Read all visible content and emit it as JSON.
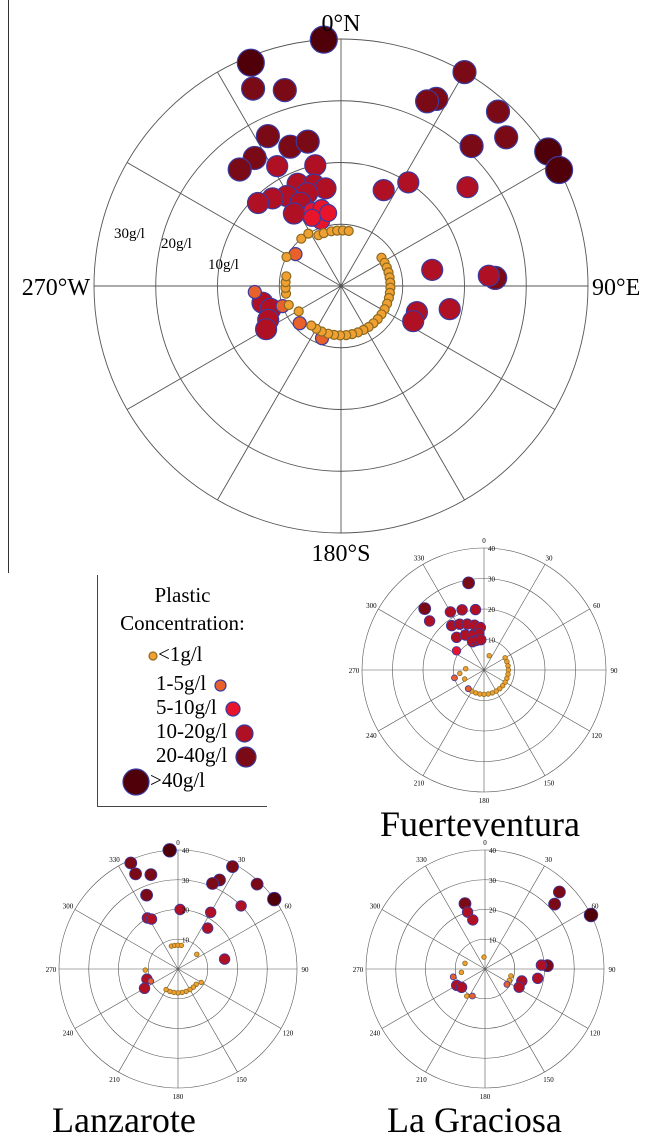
{
  "figure_left_rule": true,
  "legend": {
    "title_line1": "Plastic",
    "title_line2": "Concentration:",
    "items": [
      {
        "label": "<1g/l",
        "color": "#f0a030",
        "side": "left"
      },
      {
        "label": "1-5g/l",
        "color": "#e8602a",
        "side": "right"
      },
      {
        "label": "5-10g/l",
        "color": "#e8142c",
        "side": "right"
      },
      {
        "label": "10-20g/l",
        "color": "#b01024",
        "side": "right"
      },
      {
        "label": "20-40g/l",
        "color": "#7a0a16",
        "side": "right"
      },
      {
        "label": ">40g/l",
        "color": "#500008",
        "side": "left"
      }
    ],
    "stroke_color": "#3a3aa0"
  },
  "labels": {
    "fuerteventura": "Fuerteventura",
    "lanzarote": "Lanzarote",
    "la_graciosa": "La Graciosa"
  },
  "chart_data": [
    {
      "type": "scatter",
      "id": "combined",
      "projection": "polar",
      "theta_direction": "clockwise",
      "theta_zero": "north",
      "direction_labels": [
        "0°N",
        "90°E",
        "180°S",
        "270°W"
      ],
      "radial_labels": [
        "10g/l",
        "20g/l",
        "30g/l"
      ],
      "r_ticks": [
        10,
        20,
        30,
        40
      ],
      "r_max": 40,
      "points": [
        {
          "theta": 356,
          "r": 40,
          "cls": 5
        },
        {
          "theta": 338,
          "r": 39,
          "cls": 5
        },
        {
          "theta": 336,
          "r": 35,
          "cls": 4
        },
        {
          "theta": 344,
          "r": 33,
          "cls": 4
        },
        {
          "theta": 334,
          "r": 27,
          "cls": 4
        },
        {
          "theta": 326,
          "r": 25,
          "cls": 4
        },
        {
          "theta": 319,
          "r": 25,
          "cls": 4
        },
        {
          "theta": 332,
          "r": 22,
          "cls": 3
        },
        {
          "theta": 340,
          "r": 24,
          "cls": 4
        },
        {
          "theta": 347,
          "r": 24,
          "cls": 4
        },
        {
          "theta": 348,
          "r": 20,
          "cls": 3
        },
        {
          "theta": 337,
          "r": 18,
          "cls": 3
        },
        {
          "theta": 329,
          "r": 17,
          "cls": 3
        },
        {
          "theta": 322,
          "r": 18,
          "cls": 3
        },
        {
          "theta": 315,
          "r": 19,
          "cls": 3
        },
        {
          "theta": 345,
          "r": 17,
          "cls": 3
        },
        {
          "theta": 351,
          "r": 16,
          "cls": 3
        },
        {
          "theta": 340,
          "r": 16,
          "cls": 3
        },
        {
          "theta": 334,
          "r": 15,
          "cls": 3
        },
        {
          "theta": 327,
          "r": 14,
          "cls": 3
        },
        {
          "theta": 339,
          "r": 13,
          "cls": 2
        },
        {
          "theta": 346,
          "r": 13,
          "cls": 2
        },
        {
          "theta": 343,
          "r": 11,
          "cls": 2
        },
        {
          "theta": 350,
          "r": 12,
          "cls": 2
        },
        {
          "theta": 337,
          "r": 12,
          "cls": 2
        },
        {
          "theta": 30,
          "r": 40,
          "cls": 4
        },
        {
          "theta": 27,
          "r": 34,
          "cls": 4
        },
        {
          "theta": 25,
          "r": 33,
          "cls": 4
        },
        {
          "theta": 42,
          "r": 38,
          "cls": 4
        },
        {
          "theta": 48,
          "r": 36,
          "cls": 4
        },
        {
          "theta": 43,
          "r": 31,
          "cls": 4
        },
        {
          "theta": 57,
          "r": 40,
          "cls": 5
        },
        {
          "theta": 62,
          "r": 40,
          "cls": 5
        },
        {
          "theta": 52,
          "r": 26,
          "cls": 3
        },
        {
          "theta": 33,
          "r": 20,
          "cls": 3
        },
        {
          "theta": 24,
          "r": 17,
          "cls": 3
        },
        {
          "theta": 87,
          "r": 25,
          "cls": 4
        },
        {
          "theta": 86,
          "r": 24,
          "cls": 3
        },
        {
          "theta": 80,
          "r": 15,
          "cls": 3
        },
        {
          "theta": 102,
          "r": 18,
          "cls": 3
        },
        {
          "theta": 109,
          "r": 13,
          "cls": 3
        },
        {
          "theta": 116,
          "r": 13,
          "cls": 3
        },
        {
          "theta": 258,
          "r": 13,
          "cls": 3
        },
        {
          "theta": 252,
          "r": 12,
          "cls": 3
        },
        {
          "theta": 245,
          "r": 13,
          "cls": 3
        },
        {
          "theta": 240,
          "r": 14,
          "cls": 3
        },
        {
          "theta": 266,
          "r": 14,
          "cls": 1
        },
        {
          "theta": 251,
          "r": 10,
          "cls": 1
        },
        {
          "theta": 250,
          "r": 9,
          "cls": 0
        },
        {
          "theta": 262,
          "r": 9,
          "cls": 0
        },
        {
          "theta": 268,
          "r": 9,
          "cls": 0
        },
        {
          "theta": 274,
          "r": 9,
          "cls": 0
        },
        {
          "theta": 280,
          "r": 9,
          "cls": 0
        },
        {
          "theta": 239,
          "r": 8,
          "cls": 0
        },
        {
          "theta": 228,
          "r": 9,
          "cls": 1
        },
        {
          "theta": 200,
          "r": 9,
          "cls": 1
        },
        {
          "theta": 320,
          "r": 10,
          "cls": 0
        },
        {
          "theta": 328,
          "r": 10,
          "cls": 0
        },
        {
          "theta": 336,
          "r": 9,
          "cls": 0
        },
        {
          "theta": 342,
          "r": 9,
          "cls": 0
        },
        {
          "theta": 350,
          "r": 9,
          "cls": 0
        },
        {
          "theta": 356,
          "r": 9,
          "cls": 0
        },
        {
          "theta": 2,
          "r": 9,
          "cls": 0
        },
        {
          "theta": 8,
          "r": 9,
          "cls": 0
        },
        {
          "theta": 305,
          "r": 9,
          "cls": 1
        },
        {
          "theta": 298,
          "r": 10,
          "cls": 0
        },
        {
          "theta": 55,
          "r": 8,
          "cls": 0
        },
        {
          "theta": 62,
          "r": 8,
          "cls": 0
        },
        {
          "theta": 68,
          "r": 8,
          "cls": 0
        },
        {
          "theta": 74,
          "r": 8,
          "cls": 0
        },
        {
          "theta": 80,
          "r": 8,
          "cls": 0
        },
        {
          "theta": 86,
          "r": 8,
          "cls": 0
        },
        {
          "theta": 92,
          "r": 8,
          "cls": 0
        },
        {
          "theta": 98,
          "r": 8,
          "cls": 0
        },
        {
          "theta": 104,
          "r": 8,
          "cls": 0
        },
        {
          "theta": 111,
          "r": 8,
          "cls": 0
        },
        {
          "theta": 118,
          "r": 8,
          "cls": 0
        },
        {
          "theta": 125,
          "r": 8,
          "cls": 0
        },
        {
          "theta": 132,
          "r": 8,
          "cls": 0
        },
        {
          "theta": 139,
          "r": 8,
          "cls": 0
        },
        {
          "theta": 146,
          "r": 8,
          "cls": 0
        },
        {
          "theta": 153,
          "r": 8,
          "cls": 0
        },
        {
          "theta": 160,
          "r": 8,
          "cls": 0
        },
        {
          "theta": 167,
          "r": 8,
          "cls": 0
        },
        {
          "theta": 174,
          "r": 8,
          "cls": 0
        },
        {
          "theta": 181,
          "r": 8,
          "cls": 0
        },
        {
          "theta": 188,
          "r": 8,
          "cls": 0
        },
        {
          "theta": 195,
          "r": 8,
          "cls": 0
        },
        {
          "theta": 203,
          "r": 8,
          "cls": 0
        },
        {
          "theta": 210,
          "r": 8,
          "cls": 0
        },
        {
          "theta": 217,
          "r": 8,
          "cls": 0
        }
      ]
    },
    {
      "type": "scatter",
      "id": "fuerteventura",
      "projection": "polar",
      "theta_direction": "clockwise",
      "theta_zero": "north",
      "angle_labels": [
        "0",
        "30",
        "60",
        "90",
        "120",
        "150",
        "180",
        "210",
        "240",
        "270",
        "300",
        "330"
      ],
      "r_tick_labels": [
        "10",
        "20",
        "30",
        "40"
      ],
      "r_ticks": [
        10,
        20,
        30,
        40
      ],
      "r_max": 40,
      "points": [
        {
          "theta": 350,
          "r": 29,
          "cls": 4
        },
        {
          "theta": 316,
          "r": 28,
          "cls": 4
        },
        {
          "theta": 312,
          "r": 24,
          "cls": 3
        },
        {
          "theta": 330,
          "r": 22,
          "cls": 3
        },
        {
          "theta": 340,
          "r": 21,
          "cls": 3
        },
        {
          "theta": 352,
          "r": 20,
          "cls": 3
        },
        {
          "theta": 324,
          "r": 18,
          "cls": 3
        },
        {
          "theta": 332,
          "r": 17,
          "cls": 3
        },
        {
          "theta": 340,
          "r": 16,
          "cls": 3
        },
        {
          "theta": 348,
          "r": 15,
          "cls": 3
        },
        {
          "theta": 355,
          "r": 14,
          "cls": 3
        },
        {
          "theta": 320,
          "r": 14,
          "cls": 3
        },
        {
          "theta": 332,
          "r": 13,
          "cls": 3
        },
        {
          "theta": 342,
          "r": 12,
          "cls": 3
        },
        {
          "theta": 352,
          "r": 12,
          "cls": 3
        },
        {
          "theta": 338,
          "r": 10,
          "cls": 3
        },
        {
          "theta": 346,
          "r": 10,
          "cls": 3
        },
        {
          "theta": 354,
          "r": 10,
          "cls": 3
        },
        {
          "theta": 305,
          "r": 11,
          "cls": 2
        },
        {
          "theta": 255,
          "r": 10,
          "cls": 1
        },
        {
          "theta": 262,
          "r": 8,
          "cls": 0
        },
        {
          "theta": 274,
          "r": 6,
          "cls": 0
        },
        {
          "theta": 245,
          "r": 7,
          "cls": 0
        },
        {
          "theta": 20,
          "r": 5,
          "cls": 0
        },
        {
          "theta": 60,
          "r": 8,
          "cls": 0
        },
        {
          "theta": 70,
          "r": 8,
          "cls": 0
        },
        {
          "theta": 80,
          "r": 8,
          "cls": 0
        },
        {
          "theta": 90,
          "r": 8,
          "cls": 0
        },
        {
          "theta": 100,
          "r": 8,
          "cls": 0
        },
        {
          "theta": 110,
          "r": 8,
          "cls": 0
        },
        {
          "theta": 120,
          "r": 8,
          "cls": 0
        },
        {
          "theta": 130,
          "r": 8,
          "cls": 0
        },
        {
          "theta": 140,
          "r": 8,
          "cls": 0
        },
        {
          "theta": 150,
          "r": 8,
          "cls": 0
        },
        {
          "theta": 160,
          "r": 8,
          "cls": 0
        },
        {
          "theta": 170,
          "r": 8,
          "cls": 0
        },
        {
          "theta": 180,
          "r": 8,
          "cls": 0
        },
        {
          "theta": 190,
          "r": 8,
          "cls": 0
        },
        {
          "theta": 200,
          "r": 8,
          "cls": 0
        },
        {
          "theta": 210,
          "r": 8,
          "cls": 0
        },
        {
          "theta": 220,
          "r": 8,
          "cls": 1
        }
      ]
    },
    {
      "type": "scatter",
      "id": "lanzarote",
      "projection": "polar",
      "theta_direction": "clockwise",
      "theta_zero": "north",
      "angle_labels": [
        "0",
        "30",
        "60",
        "90",
        "120",
        "150",
        "180",
        "210",
        "240",
        "270",
        "300",
        "330"
      ],
      "r_tick_labels": [
        "10",
        "20",
        "30",
        "40"
      ],
      "r_ticks": [
        10,
        20,
        30,
        40
      ],
      "r_max": 40,
      "points": [
        {
          "theta": 356,
          "r": 40,
          "cls": 5
        },
        {
          "theta": 336,
          "r": 39,
          "cls": 4
        },
        {
          "theta": 336,
          "r": 35,
          "cls": 4
        },
        {
          "theta": 344,
          "r": 33,
          "cls": 4
        },
        {
          "theta": 337,
          "r": 27,
          "cls": 4
        },
        {
          "theta": 329,
          "r": 20,
          "cls": 3
        },
        {
          "theta": 332,
          "r": 19,
          "cls": 3
        },
        {
          "theta": 2,
          "r": 20,
          "cls": 3
        },
        {
          "theta": 28,
          "r": 39,
          "cls": 4
        },
        {
          "theta": 25,
          "r": 33,
          "cls": 4
        },
        {
          "theta": 22,
          "r": 31,
          "cls": 4
        },
        {
          "theta": 43,
          "r": 39,
          "cls": 4
        },
        {
          "theta": 54,
          "r": 40,
          "cls": 5
        },
        {
          "theta": 45,
          "r": 30,
          "cls": 3
        },
        {
          "theta": 30,
          "r": 22,
          "cls": 3
        },
        {
          "theta": 36,
          "r": 17,
          "cls": 3
        },
        {
          "theta": 78,
          "r": 16,
          "cls": 3
        },
        {
          "theta": 252,
          "r": 11,
          "cls": 3
        },
        {
          "theta": 240,
          "r": 13,
          "cls": 3
        },
        {
          "theta": 246,
          "r": 10,
          "cls": 1
        },
        {
          "theta": 268,
          "r": 11,
          "cls": 0
        },
        {
          "theta": 344,
          "r": 8,
          "cls": 0
        },
        {
          "theta": 352,
          "r": 8,
          "cls": 0
        },
        {
          "theta": 0,
          "r": 8,
          "cls": 0
        },
        {
          "theta": 8,
          "r": 8,
          "cls": 0
        },
        {
          "theta": 52,
          "r": 8,
          "cls": 0
        },
        {
          "theta": 120,
          "r": 9,
          "cls": 0
        },
        {
          "theta": 130,
          "r": 8,
          "cls": 0
        },
        {
          "theta": 140,
          "r": 8,
          "cls": 0
        },
        {
          "theta": 150,
          "r": 8,
          "cls": 0
        },
        {
          "theta": 160,
          "r": 8,
          "cls": 0
        },
        {
          "theta": 170,
          "r": 8,
          "cls": 0
        },
        {
          "theta": 180,
          "r": 8,
          "cls": 0
        },
        {
          "theta": 190,
          "r": 8,
          "cls": 0
        },
        {
          "theta": 200,
          "r": 8,
          "cls": 0
        },
        {
          "theta": 210,
          "r": 8,
          "cls": 0
        }
      ]
    },
    {
      "type": "scatter",
      "id": "la_graciosa",
      "projection": "polar",
      "theta_direction": "clockwise",
      "theta_zero": "north",
      "angle_labels": [
        "0",
        "30",
        "60",
        "90",
        "120",
        "150",
        "180",
        "210",
        "240",
        "270",
        "300",
        "330"
      ],
      "r_tick_labels": [
        "10",
        "20",
        "30",
        "40"
      ],
      "r_ticks": [
        10,
        20,
        30,
        40
      ],
      "r_max": 40,
      "points": [
        {
          "theta": 343,
          "r": 23,
          "cls": 4
        },
        {
          "theta": 343,
          "r": 20,
          "cls": 3
        },
        {
          "theta": 346,
          "r": 17,
          "cls": 3
        },
        {
          "theta": 44,
          "r": 36,
          "cls": 4
        },
        {
          "theta": 47,
          "r": 32,
          "cls": 4
        },
        {
          "theta": 63,
          "r": 40,
          "cls": 5
        },
        {
          "theta": 87,
          "r": 21,
          "cls": 4
        },
        {
          "theta": 86,
          "r": 19,
          "cls": 3
        },
        {
          "theta": 100,
          "r": 18,
          "cls": 3
        },
        {
          "theta": 108,
          "r": 13,
          "cls": 3
        },
        {
          "theta": 118,
          "r": 13,
          "cls": 3
        },
        {
          "theta": 240,
          "r": 11,
          "cls": 3
        },
        {
          "theta": 232,
          "r": 10,
          "cls": 3
        },
        {
          "theta": 256,
          "r": 11,
          "cls": 1
        },
        {
          "theta": 262,
          "r": 8,
          "cls": 0
        },
        {
          "theta": 286,
          "r": 7,
          "cls": 0
        },
        {
          "theta": 355,
          "r": 4,
          "cls": 0
        },
        {
          "theta": 105,
          "r": 9,
          "cls": 0
        },
        {
          "theta": 115,
          "r": 9,
          "cls": 0
        },
        {
          "theta": 125,
          "r": 9,
          "cls": 1
        },
        {
          "theta": 205,
          "r": 10,
          "cls": 1
        },
        {
          "theta": 214,
          "r": 11,
          "cls": 0
        }
      ]
    }
  ]
}
